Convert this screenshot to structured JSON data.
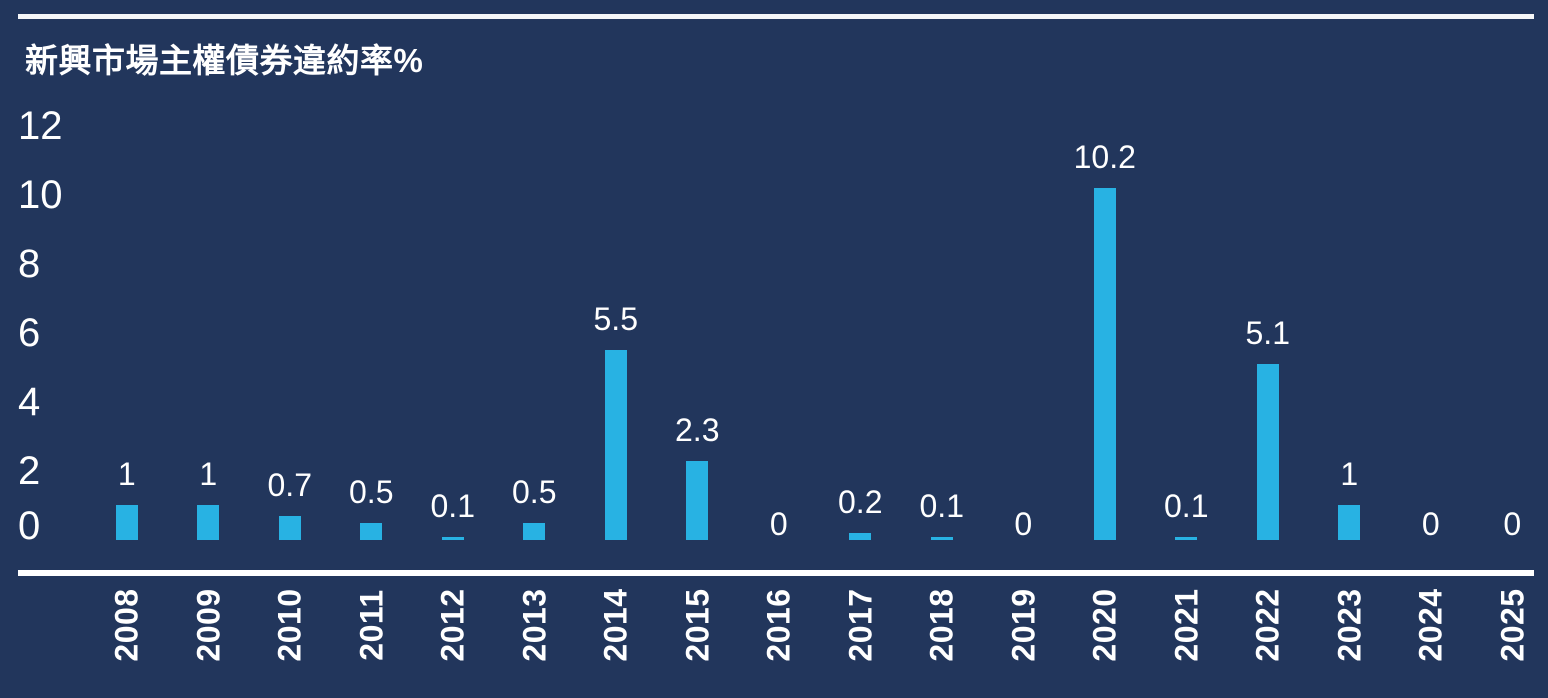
{
  "page": {
    "background_color": "#22365C",
    "rule_color": "#F5F6F8",
    "text_color": "#FFFFFF"
  },
  "chart_data": {
    "type": "bar",
    "title": "新興市場主權債券違約率%",
    "categories": [
      "2008",
      "2009",
      "2010",
      "2011",
      "2012",
      "2013",
      "2014",
      "2015",
      "2016",
      "2017",
      "2018",
      "2019",
      "2020",
      "2021",
      "2022",
      "2023",
      "2024",
      "2025"
    ],
    "values": [
      1,
      1,
      0.7,
      0.5,
      0.1,
      0.5,
      5.5,
      2.3,
      0,
      0.2,
      0.1,
      0,
      10.2,
      0.1,
      5.1,
      1,
      0,
      0
    ],
    "value_labels": [
      "1",
      "1",
      "0.7",
      "0.5",
      "0.1",
      "0.5",
      "5.5",
      "2.3",
      "0",
      "0.2",
      "0.1",
      "0",
      "10.2",
      "0.1",
      "5.1",
      "1",
      "0",
      "0"
    ],
    "yticks": [
      12,
      10,
      8,
      6,
      4,
      2,
      0
    ],
    "ylim": [
      0,
      12
    ],
    "xlabel": "",
    "ylabel": "",
    "grid": false,
    "legend_position": "none",
    "bar_color": "#28B2E3",
    "label_color": "#FFFFFF",
    "axis_line_color": "#FFFFFF"
  }
}
